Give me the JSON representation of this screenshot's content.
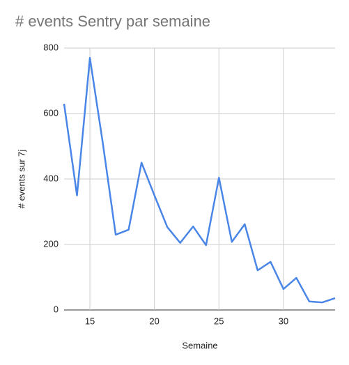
{
  "chart_data": {
    "type": "line",
    "title": "# events Sentry par semaine",
    "x_label": "Semaine",
    "y_label": "# events sur 7j",
    "x": [
      13,
      14,
      15,
      16,
      17,
      18,
      19,
      20,
      21,
      22,
      23,
      24,
      25,
      26,
      27,
      28,
      29,
      30,
      31,
      32,
      33,
      34
    ],
    "series": [
      {
        "color": "#4a86e8",
        "values": [
          630,
          350,
          770,
          510,
          230,
          245,
          450,
          350,
          253,
          205,
          255,
          198,
          404,
          208,
          262,
          121,
          147,
          64,
          98,
          26,
          23,
          36
        ]
      }
    ],
    "xlim": [
      13,
      34
    ],
    "xticks": [
      15,
      20,
      25,
      30
    ],
    "ylim": [
      0,
      800
    ],
    "yticks": [
      0,
      200,
      400,
      600,
      800
    ],
    "grid": true
  }
}
